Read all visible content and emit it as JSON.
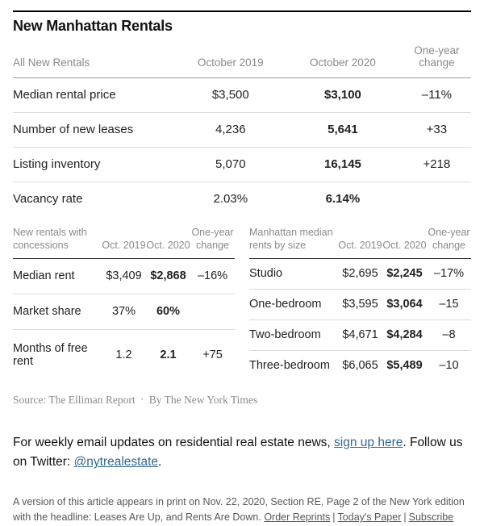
{
  "page": {
    "title": "New Manhattan Rentals"
  },
  "colors": {
    "accent_red": "#c1261c",
    "link_blue": "#326891"
  },
  "main_table": {
    "headers": [
      "All New Rentals",
      "October 2019",
      "October 2020",
      "One-year change"
    ],
    "rows": [
      {
        "label": "Median rental price",
        "oct2019": "$3,500",
        "oct2020": "$3,100",
        "change": "–11%"
      },
      {
        "label": "Number of new leases",
        "oct2019": "4,236",
        "oct2020": "5,641",
        "change": "+33"
      },
      {
        "label": "Listing inventory",
        "oct2019": "5,070",
        "oct2020": "16,145",
        "change": "+218"
      },
      {
        "label": "Vacancy rate",
        "oct2019": "2.03%",
        "oct2020": "6.14%",
        "change": ""
      }
    ]
  },
  "concessions_table": {
    "headers": [
      "New rentals with concessions",
      "Oct. 2019",
      "Oct. 2020",
      "One-year change"
    ],
    "rows": [
      {
        "label": "Median rent",
        "oct2019": "$3,409",
        "oct2020": "$2,868",
        "change": "–16%"
      },
      {
        "label": "Market share",
        "oct2019": "37%",
        "oct2020": "60%",
        "change": ""
      },
      {
        "label": "Months of free rent",
        "oct2019": "1.2",
        "oct2020": "2.1",
        "change": "+75"
      }
    ]
  },
  "size_table": {
    "headers": [
      "Manhattan median rents by size",
      "Oct. 2019",
      "Oct. 2020",
      "One-year change"
    ],
    "rows": [
      {
        "label": "Studio",
        "oct2019": "$2,695",
        "oct2020": "$2,245",
        "change": "–17%"
      },
      {
        "label": "One-bedroom",
        "oct2019": "$3,595",
        "oct2020": "$3,064",
        "change": "–15"
      },
      {
        "label": "Two-bedroom",
        "oct2019": "$4,671",
        "oct2020": "$4,284",
        "change": "–8"
      },
      {
        "label": "Three-bedroom",
        "oct2019": "$6,065",
        "oct2020": "$5,489",
        "change": "–10"
      }
    ]
  },
  "source_line": {
    "source": "Source: The Elliman Report",
    "separator": "•",
    "byline": "By The New York Times"
  },
  "newsletter": {
    "text_before": "For weekly email updates on residential real estate news, ",
    "signup_link": "sign up here",
    "text_middle": ". Follow us on Twitter: ",
    "twitter_link": "@nytrealestate",
    "text_after": "."
  },
  "print_note": {
    "text": "A version of this article appears in print on Nov. 22, 2020, Section RE, Page 2 of the New York edition with the headline: Leases Are Up, and Rents Are Down. ",
    "links": [
      "Order Reprints",
      "Today's Paper",
      "Subscribe"
    ],
    "separator": "|"
  }
}
